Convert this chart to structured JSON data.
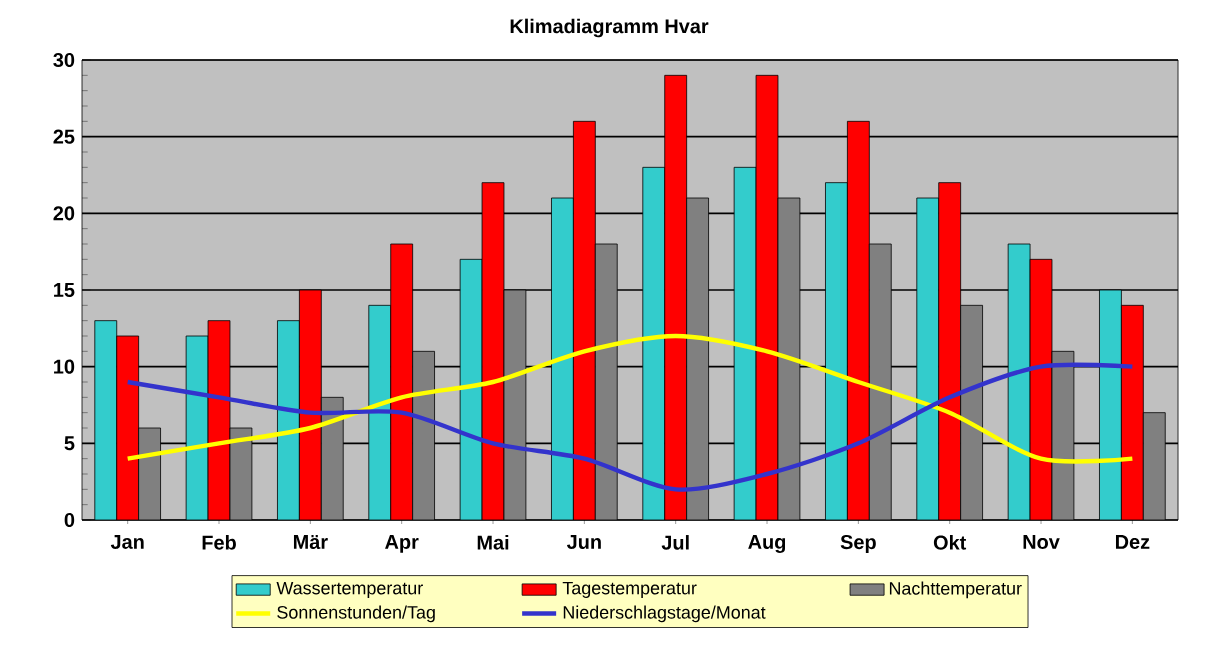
{
  "chart_data": {
    "type": "bar",
    "title": "Klimadiagramm Hvar",
    "categories": [
      "Jan",
      "Feb",
      "Mär",
      "Apr",
      "Mai",
      "Jun",
      "Jul",
      "Aug",
      "Sep",
      "Okt",
      "Nov",
      "Dez"
    ],
    "series": [
      {
        "name": "Wassertemperatur",
        "color": "#33cccc",
        "values": [
          13,
          12,
          13,
          14,
          17,
          21,
          23,
          23,
          22,
          21,
          18,
          15
        ]
      },
      {
        "name": "Tagestemperatur",
        "color": "#ff0000",
        "values": [
          12,
          13,
          15,
          18,
          22,
          26,
          29,
          29,
          26,
          22,
          17,
          14
        ]
      },
      {
        "name": "Nachttemperatur",
        "color": "#808080",
        "values": [
          6,
          6,
          8,
          11,
          15,
          18,
          21,
          21,
          18,
          14,
          11,
          7
        ]
      },
      {
        "name": "Sonnenstunden/Tag",
        "type": "line",
        "color": "#ffff00",
        "values": [
          4,
          5,
          6,
          8,
          9,
          11,
          12,
          11,
          9,
          7,
          4,
          4
        ]
      },
      {
        "name": "Niederschlagstage/Monat",
        "type": "line",
        "color": "#3333cc",
        "values": [
          9,
          8,
          7,
          7,
          5,
          4,
          2,
          3,
          5,
          8,
          10,
          10
        ]
      }
    ],
    "ylim": [
      0,
      30
    ],
    "yticks": [
      0,
      5,
      10,
      15,
      20,
      25,
      30
    ],
    "grid": "y",
    "legend": "bottom"
  }
}
